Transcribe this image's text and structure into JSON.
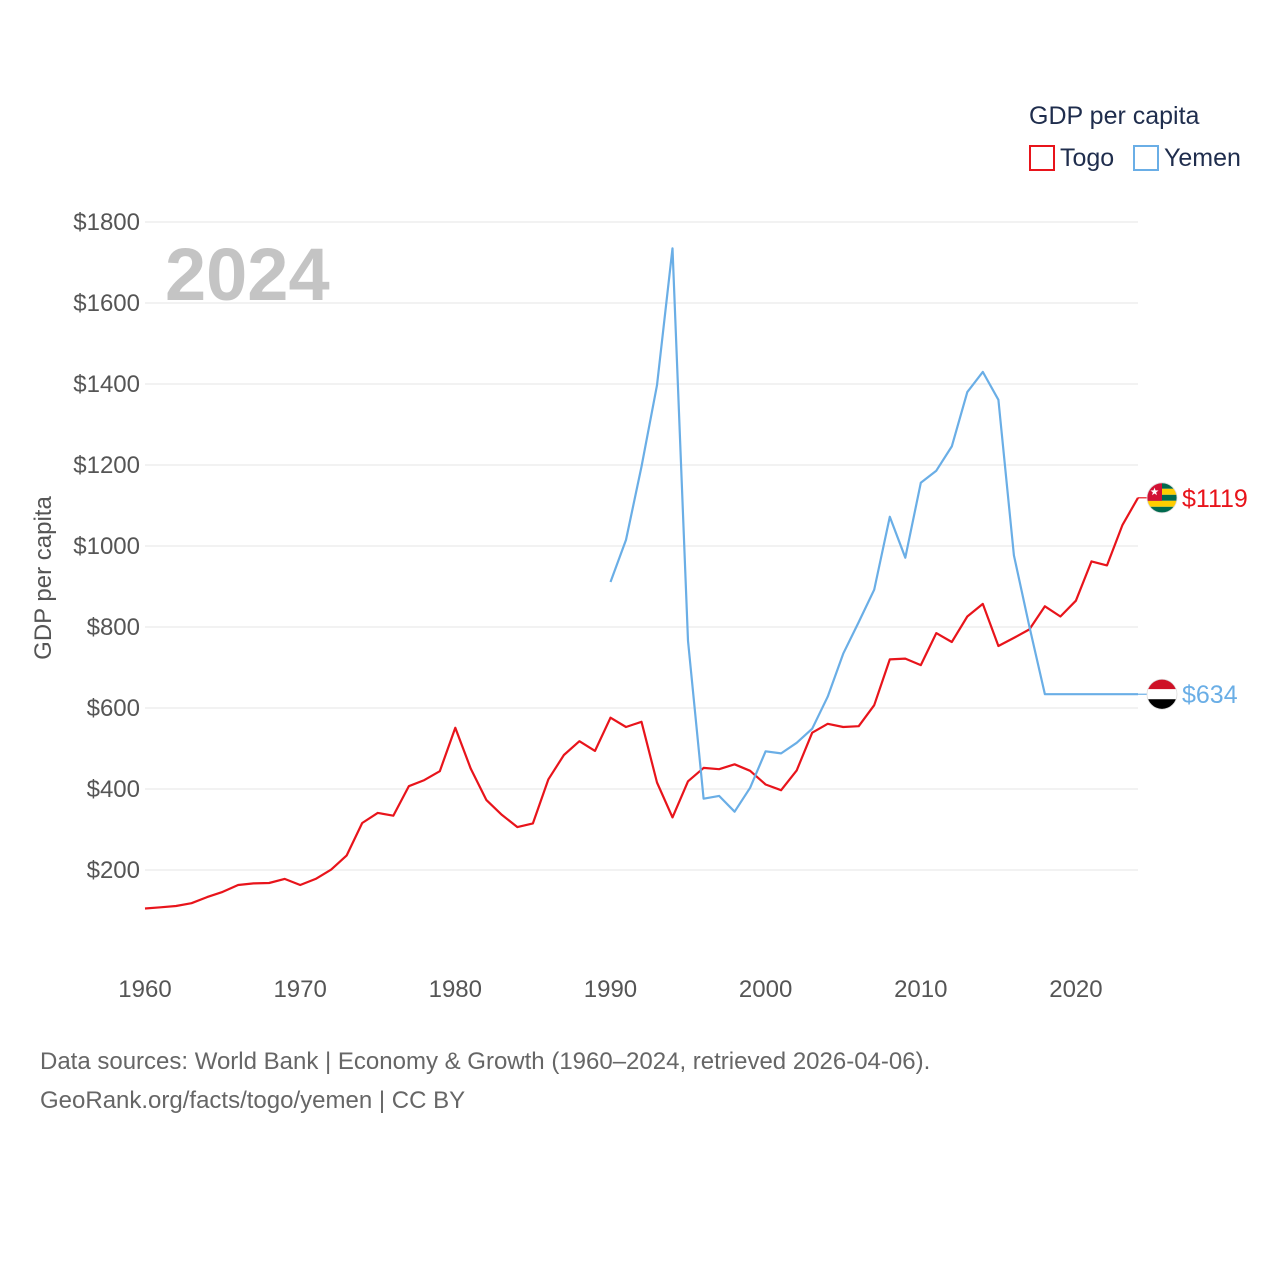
{
  "chart_data": {
    "type": "line",
    "title": "GDP per capita",
    "year": "2024",
    "ylabel": "GDP per capita",
    "xlabel": "",
    "xlim": [
      1960,
      2024
    ],
    "ylim": [
      0,
      1800
    ],
    "y_ticks": [
      200,
      400,
      600,
      800,
      1000,
      1200,
      1400,
      1600,
      1800
    ],
    "y_tick_labels": [
      "$200",
      "$400",
      "$600",
      "$800",
      "$1000",
      "$1200",
      "$1400",
      "$1600",
      "$1800"
    ],
    "x_ticks": [
      1960,
      1970,
      1980,
      1990,
      2000,
      2010,
      2020
    ],
    "x_tick_labels": [
      "1960",
      "1970",
      "1980",
      "1990",
      "2000",
      "2010",
      "2020"
    ],
    "legend_position": "top-right",
    "series": [
      {
        "name": "Togo",
        "color": "#e8141b",
        "end_label": "$1119",
        "flag": "togo-flag",
        "x": [
          1960,
          1961,
          1962,
          1963,
          1964,
          1965,
          1966,
          1967,
          1968,
          1969,
          1970,
          1971,
          1972,
          1973,
          1974,
          1975,
          1976,
          1977,
          1978,
          1979,
          1980,
          1981,
          1982,
          1983,
          1984,
          1985,
          1986,
          1987,
          1988,
          1989,
          1990,
          1991,
          1992,
          1993,
          1994,
          1995,
          1996,
          1997,
          1998,
          1999,
          2000,
          2001,
          2002,
          2003,
          2004,
          2005,
          2006,
          2007,
          2008,
          2009,
          2010,
          2011,
          2012,
          2013,
          2014,
          2015,
          2016,
          2017,
          2018,
          2019,
          2020,
          2021,
          2022,
          2023,
          2024
        ],
        "values": [
          105,
          108,
          111,
          118,
          133,
          146,
          163,
          167,
          168,
          178,
          163,
          178,
          201,
          236,
          316,
          341,
          334,
          407,
          422,
          444,
          551,
          450,
          373,
          336,
          306,
          315,
          424,
          484,
          518,
          494,
          576,
          553,
          566,
          416,
          330,
          419,
          452,
          449,
          461,
          445,
          411,
          397,
          446,
          539,
          561,
          553,
          555,
          607,
          720,
          722,
          706,
          785,
          763,
          826,
          857,
          753,
          773,
          794,
          851,
          826,
          865,
          962,
          952,
          1052,
          1119
        ]
      },
      {
        "name": "Yemen",
        "color": "#6aaee6",
        "end_label": "$634",
        "flag": "yemen-flag",
        "x": [
          1990,
          1991,
          1992,
          1993,
          1994,
          1995,
          1996,
          1997,
          1998,
          1999,
          2000,
          2001,
          2002,
          2003,
          2004,
          2005,
          2006,
          2007,
          2008,
          2009,
          2010,
          2011,
          2012,
          2013,
          2014,
          2015,
          2016,
          2017,
          2018,
          2019,
          2020,
          2021,
          2022,
          2023,
          2024
        ],
        "values": [
          911,
          1015,
          1196,
          1397,
          1735,
          766,
          376,
          383,
          344,
          403,
          493,
          488,
          514,
          549,
          628,
          734,
          812,
          892,
          1072,
          971,
          1156,
          1186,
          1246,
          1380,
          1430,
          1361,
          977,
          801,
          634,
          634,
          634,
          634,
          634,
          634,
          634
        ]
      }
    ]
  },
  "source": {
    "line1": "Data sources: World Bank | Economy & Growth (1960–2024, retrieved 2026-04-06).",
    "line2": "GeoRank.org/facts/togo/yemen | CC BY"
  }
}
